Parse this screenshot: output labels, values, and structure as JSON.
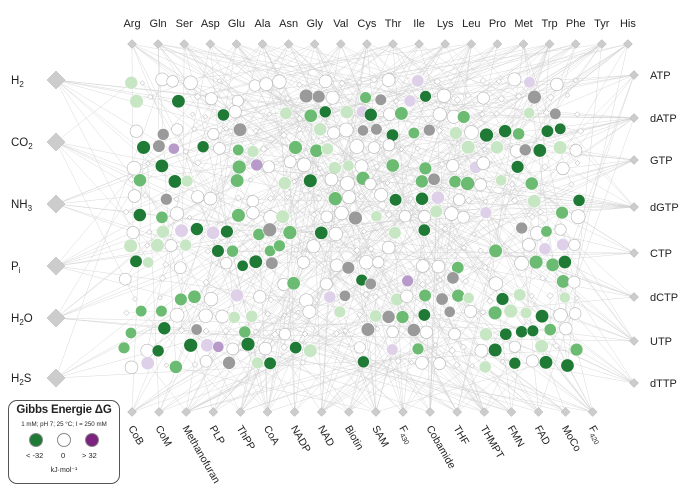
{
  "amino_acids": [
    "Arg",
    "Gln",
    "Ser",
    "Asp",
    "Glu",
    "Ala",
    "Asn",
    "Gly",
    "Val",
    "Cys",
    "Thr",
    "Ile",
    "Lys",
    "Leu",
    "Pro",
    "Met",
    "Trp",
    "Phe",
    "Tyr",
    "His"
  ],
  "left_nodes": [
    {
      "base": "H",
      "sub": "2",
      "suffix": ""
    },
    {
      "base": "CO",
      "sub": "2",
      "suffix": ""
    },
    {
      "base": "NH",
      "sub": "3",
      "suffix": ""
    },
    {
      "base": "P",
      "sub": "i",
      "suffix": ""
    },
    {
      "base": "H",
      "sub": "2",
      "suffix": "O"
    },
    {
      "base": "H",
      "sub": "2",
      "suffix": "S"
    }
  ],
  "right_nodes": [
    "ATP",
    "dATP",
    "GTP",
    "dGTP",
    "CTP",
    "dCTP",
    "UTP",
    "dTTP"
  ],
  "cofactors": [
    {
      "base": "CoB",
      "sub": ""
    },
    {
      "base": "CoM",
      "sub": ""
    },
    {
      "base": "Methanofuran",
      "sub": ""
    },
    {
      "base": "PLP",
      "sub": ""
    },
    {
      "base": "ThPP",
      "sub": ""
    },
    {
      "base": "CoA",
      "sub": ""
    },
    {
      "base": "NADP",
      "sub": ""
    },
    {
      "base": "NAD",
      "sub": ""
    },
    {
      "base": "Biotin",
      "sub": ""
    },
    {
      "base": "SAM",
      "sub": ""
    },
    {
      "base": "F",
      "sub": "430"
    },
    {
      "base": "Cobamide",
      "sub": ""
    },
    {
      "base": "THF",
      "sub": ""
    },
    {
      "base": "THMPT",
      "sub": ""
    },
    {
      "base": "FMN",
      "sub": ""
    },
    {
      "base": "FAD",
      "sub": ""
    },
    {
      "base": "MoCo",
      "sub": ""
    },
    {
      "base": "F",
      "sub": "420"
    }
  ],
  "legend": {
    "title": "Gibbs Energie",
    "title_symbol": "ΔG",
    "conditions": "1 mM; pH 7; 25 °C; I = 250 mM",
    "labels": [
      "< -32",
      "0",
      "> 32"
    ],
    "unit": "kJ·mol⁻¹"
  },
  "colors": {
    "strong_negative": "#1e7a34",
    "medium_negative": "#6cbb72",
    "light_negative": "#c7e6c4",
    "neutral": "#ffffff",
    "light_positive": "#ddd0e8",
    "medium_positive": "#b79ac9",
    "strong_positive": "#7b237e",
    "undetermined": "#9a9a9a",
    "edge": "#cfcfcf",
    "diamond": "#cccccc"
  }
}
